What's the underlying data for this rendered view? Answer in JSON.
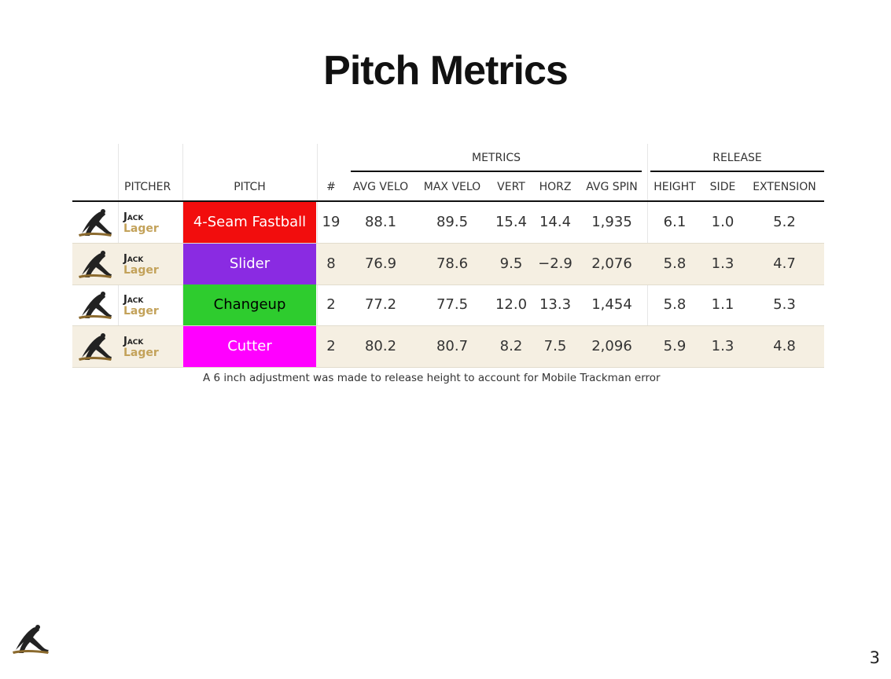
{
  "title": "Pitch Metrics",
  "group_headers": {
    "metrics": "METRICS",
    "release": "RELEASE"
  },
  "columns": {
    "pitcher": "PITCHER",
    "pitch": "PITCH",
    "count": "#",
    "avg_velo": "AVG VELO",
    "max_velo": "MAX VELO",
    "vert": "VERT",
    "horz": "HORZ",
    "avg_spin": "AVG SPIN",
    "height": "HEIGHT",
    "side": "SIDE",
    "extension": "EXTENSION"
  },
  "rows": [
    {
      "first": "Jack",
      "last": "Lager",
      "pitch": "4-Seam Fastball",
      "pitch_color": "#f20d0d",
      "pitch_text_color": "#ffffff",
      "count": "19",
      "avg_velo": "88.1",
      "max_velo": "89.5",
      "vert": "15.4",
      "horz": "14.4",
      "avg_spin": "1,935",
      "height": "6.1",
      "side": "1.0",
      "extension": "5.2"
    },
    {
      "first": "Jack",
      "last": "Lager",
      "pitch": "Slider",
      "pitch_color": "#8a2be2",
      "pitch_text_color": "#ffffff",
      "count": "8",
      "avg_velo": "76.9",
      "max_velo": "78.6",
      "vert": "9.5",
      "horz": "−2.9",
      "avg_spin": "2,076",
      "height": "5.8",
      "side": "1.3",
      "extension": "4.7"
    },
    {
      "first": "Jack",
      "last": "Lager",
      "pitch": "Changeup",
      "pitch_color": "#2ecc2e",
      "pitch_text_color": "#000000",
      "count": "2",
      "avg_velo": "77.2",
      "max_velo": "77.5",
      "vert": "12.0",
      "horz": "13.3",
      "avg_spin": "1,454",
      "height": "5.8",
      "side": "1.1",
      "extension": "5.3"
    },
    {
      "first": "Jack",
      "last": "Lager",
      "pitch": "Cutter",
      "pitch_color": "#ff00ff",
      "pitch_text_color": "#ffffff",
      "count": "2",
      "avg_velo": "80.2",
      "max_velo": "80.7",
      "vert": "8.2",
      "horz": "7.5",
      "avg_spin": "2,096",
      "height": "5.9",
      "side": "1.3",
      "extension": "4.8"
    }
  ],
  "footnote": "A 6 inch adjustment was made to release height to account for Mobile Trackman error",
  "page_number": "3",
  "logo_icon": "pitcher-logo-icon"
}
